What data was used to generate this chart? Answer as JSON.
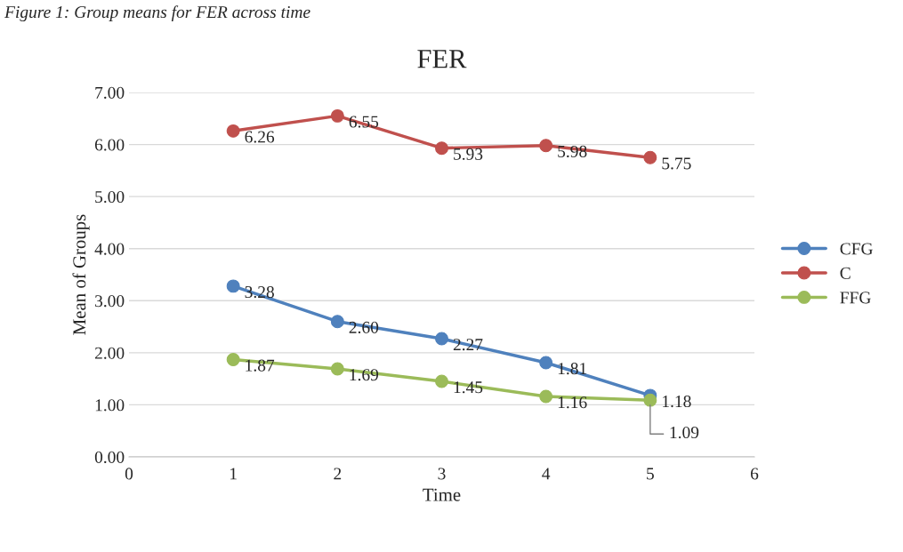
{
  "chart_data": {
    "type": "line",
    "title": "FER",
    "xlabel": "Time",
    "ylabel": "Mean of Groups",
    "annotations": [
      "Figure 1: Group means for FER across time"
    ],
    "x": [
      1,
      2,
      3,
      4,
      5
    ],
    "series": [
      {
        "name": "CFG",
        "color": "#4f81bd",
        "values": [
          3.28,
          2.6,
          2.27,
          1.81,
          1.18
        ],
        "value_labels": [
          "3.28",
          "2.60",
          "2.27",
          "1.81",
          "1.18"
        ]
      },
      {
        "name": "C",
        "color": "#c0504d",
        "values": [
          6.26,
          6.55,
          5.93,
          5.98,
          5.75
        ],
        "value_labels": [
          "6.26",
          "6.55",
          "5.93",
          "5.98",
          "5.75"
        ]
      },
      {
        "name": "FFG",
        "color": "#9bbb59",
        "values": [
          1.87,
          1.69,
          1.45,
          1.16,
          1.09
        ],
        "value_labels": [
          "1.87",
          "1.69",
          "1.45",
          "1.16",
          "1.09"
        ]
      }
    ],
    "xlim": [
      0,
      6
    ],
    "xticks": [
      0,
      1,
      2,
      3,
      4,
      5,
      6
    ],
    "ylim": [
      0,
      7
    ],
    "yticks": [
      {
        "value": 0,
        "label": "0.00"
      },
      {
        "value": 1,
        "label": "1.00"
      },
      {
        "value": 2,
        "label": "2.00"
      },
      {
        "value": 3,
        "label": "3.00"
      },
      {
        "value": 4,
        "label": "4.00"
      },
      {
        "value": 5,
        "label": "5.00"
      },
      {
        "value": 6,
        "label": "6.00"
      },
      {
        "value": 7,
        "label": "7.00"
      }
    ],
    "grid": "y",
    "legend": "right",
    "marker": "circle",
    "line_style": "solid"
  }
}
